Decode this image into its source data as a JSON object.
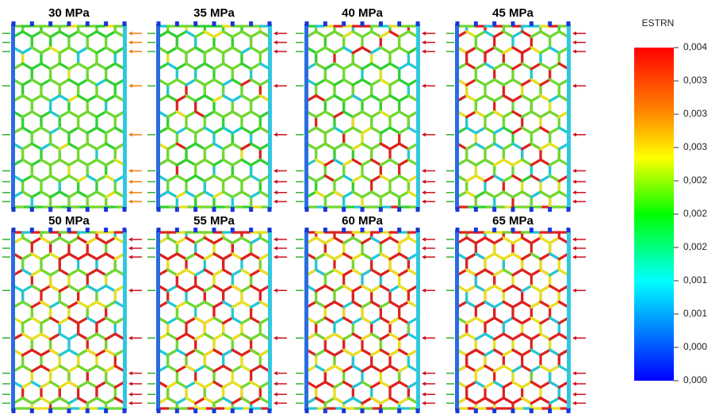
{
  "panels": [
    {
      "title": "30 MPa"
    },
    {
      "title": "35 MPa"
    },
    {
      "title": "40 MPa"
    },
    {
      "title": "45 MPa"
    },
    {
      "title": "50 MPa"
    },
    {
      "title": "55 MPa"
    },
    {
      "title": "60 MPa"
    },
    {
      "title": "65 MPa"
    }
  ],
  "legend": {
    "title": "ESTRN",
    "ticks": [
      "0,004",
      "0,003",
      "0,003",
      "0,003",
      "0,002",
      "0,002",
      "0,002",
      "0,001",
      "0,001",
      "0,000",
      "0,000"
    ]
  }
}
